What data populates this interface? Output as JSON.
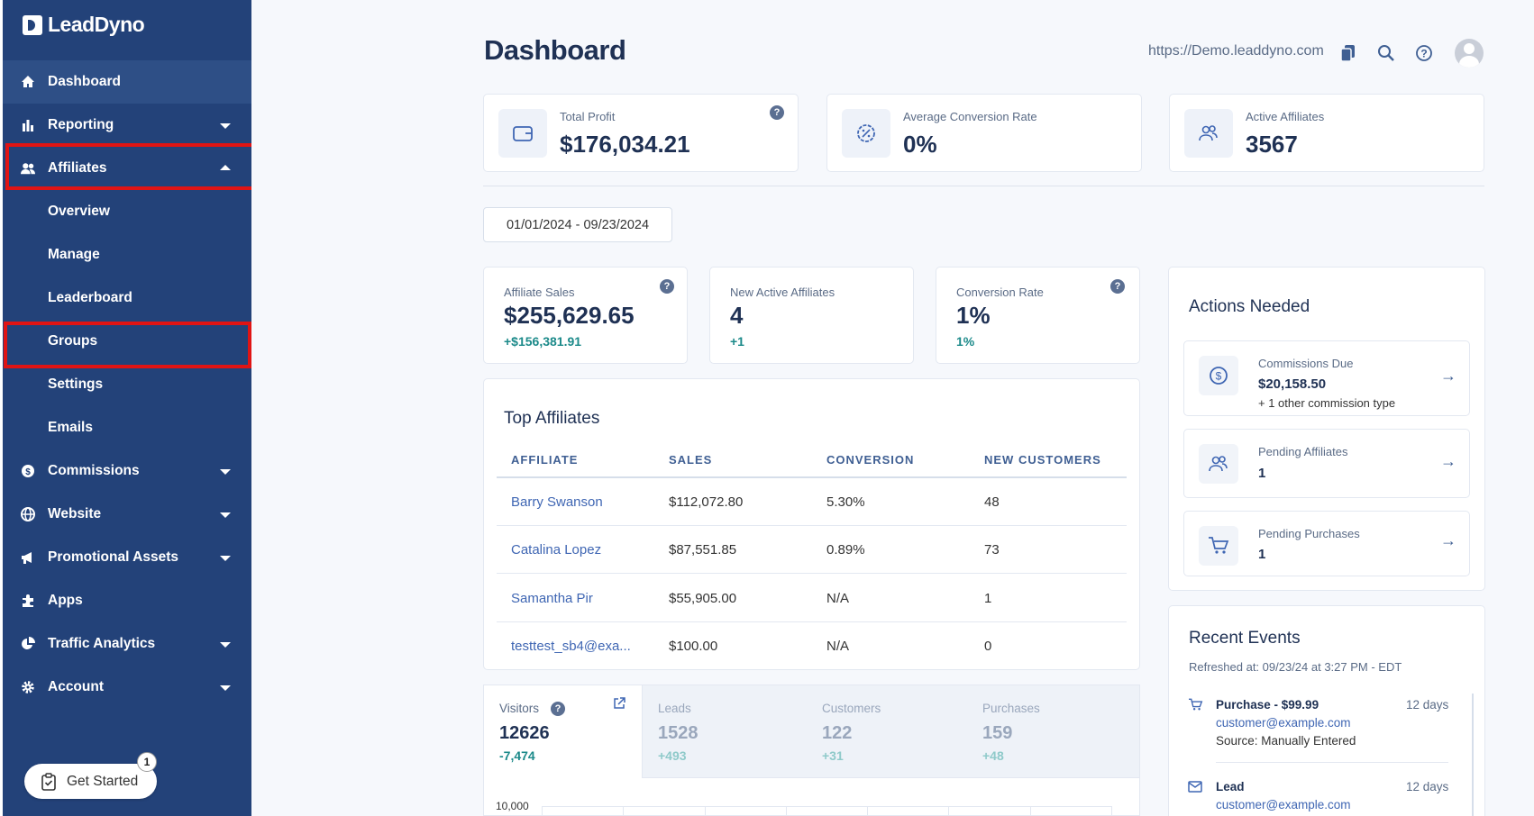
{
  "app": {
    "brand": "LeadDyno"
  },
  "sidebar": {
    "items": [
      {
        "label": "Dashboard"
      },
      {
        "label": "Reporting"
      },
      {
        "label": "Affiliates"
      },
      {
        "label": "Commissions"
      },
      {
        "label": "Website"
      },
      {
        "label": "Promotional Assets"
      },
      {
        "label": "Apps"
      },
      {
        "label": "Traffic Analytics"
      },
      {
        "label": "Account"
      }
    ],
    "affiliates_sub": [
      {
        "label": "Overview"
      },
      {
        "label": "Manage"
      },
      {
        "label": "Leaderboard"
      },
      {
        "label": "Groups"
      },
      {
        "label": "Settings"
      },
      {
        "label": "Emails"
      }
    ],
    "get_started": {
      "label": "Get Started",
      "badge": "1"
    }
  },
  "header": {
    "title": "Dashboard",
    "site_url": "https://Demo.leaddyno.com"
  },
  "stats": [
    {
      "label": "Total Profit",
      "value": "$176,034.21"
    },
    {
      "label": "Average Conversion Rate",
      "value": "0%"
    },
    {
      "label": "Active Affiliates",
      "value": "3567"
    }
  ],
  "date_range": "01/01/2024 - 09/23/2024",
  "metrics": [
    {
      "label": "Affiliate Sales",
      "value": "$255,629.65",
      "change": "+$156,381.91"
    },
    {
      "label": "New Active Affiliates",
      "value": "4",
      "change": "+1"
    },
    {
      "label": "Conversion Rate",
      "value": "1%",
      "change": "1%"
    }
  ],
  "top_affiliates": {
    "title": "Top Affiliates",
    "columns": [
      "AFFILIATE",
      "SALES",
      "CONVERSION",
      "NEW CUSTOMERS"
    ],
    "rows": [
      {
        "affiliate": "Barry Swanson",
        "sales": "$112,072.80",
        "conversion": "5.30%",
        "new_customers": "48"
      },
      {
        "affiliate": "Catalina Lopez",
        "sales": "$87,551.85",
        "conversion": "0.89%",
        "new_customers": "73"
      },
      {
        "affiliate": "Samantha Pir",
        "sales": "$55,905.00",
        "conversion": "N/A",
        "new_customers": "1"
      },
      {
        "affiliate": "testtest_sb4@exa...",
        "sales": "$100.00",
        "conversion": "N/A",
        "new_customers": "0"
      }
    ]
  },
  "funnel_tabs": [
    {
      "label": "Visitors",
      "value": "12626",
      "change": "-7,474"
    },
    {
      "label": "Leads",
      "value": "1528",
      "change": "+493"
    },
    {
      "label": "Customers",
      "value": "122",
      "change": "+31"
    },
    {
      "label": "Purchases",
      "value": "159",
      "change": "+48"
    }
  ],
  "chart": {
    "y_tick_top": "10,000"
  },
  "actions": {
    "title": "Actions Needed",
    "items": [
      {
        "label": "Commissions Due",
        "value": "$20,158.50",
        "sub": "+ 1 other commission type"
      },
      {
        "label": "Pending Affiliates",
        "value": "1"
      },
      {
        "label": "Pending Purchases",
        "value": "1"
      }
    ]
  },
  "recent_events": {
    "title": "Recent Events",
    "refreshed": "Refreshed at: 09/23/24 at 3:27 PM - EDT",
    "events": [
      {
        "title": "Purchase - $99.99",
        "email": "customer@example.com",
        "source": "Source: Manually Entered",
        "time": "12 days"
      },
      {
        "title": "Lead",
        "email": "customer@example.com",
        "time": "12 days"
      }
    ]
  },
  "colors": {
    "sidebar_bg": "#234279",
    "accent": "#3f66b3",
    "positive": "#1c8a8a",
    "highlight": "#e01414"
  }
}
